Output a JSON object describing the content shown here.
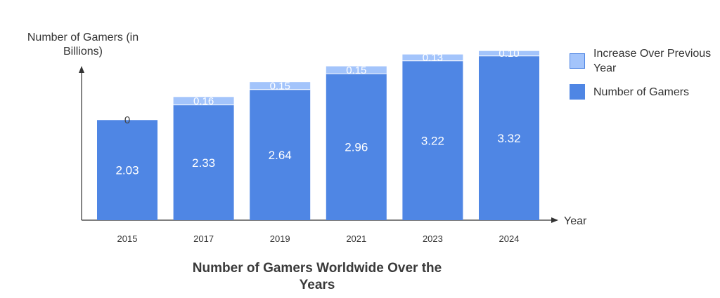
{
  "chart_data": {
    "type": "bar",
    "stacked": true,
    "title": "Number of Gamers Worldwide Over the Years",
    "ylabel": "Number of Gamers (in Billions)",
    "xlabel": "Year",
    "categories": [
      "2015",
      "2017",
      "2019",
      "2021",
      "2023",
      "2024"
    ],
    "series": [
      {
        "name": "Number of Gamers",
        "values": [
          2.03,
          2.33,
          2.64,
          2.96,
          3.22,
          3.32
        ],
        "color": "#4f86e4",
        "labels": [
          "2.03",
          "2.33",
          "2.64",
          "2.96",
          "3.22",
          "3.32"
        ]
      },
      {
        "name": "Increase Over Previous Year",
        "values": [
          0,
          0.16,
          0.15,
          0.15,
          0.13,
          0.1
        ],
        "color": "#a3c4fb",
        "labels": [
          "0",
          "0.16",
          "0.15",
          "0.15",
          "0.13",
          "0.10"
        ]
      }
    ],
    "ylim": [
      0,
      3.6
    ],
    "grid": false,
    "legend": "top-right"
  }
}
